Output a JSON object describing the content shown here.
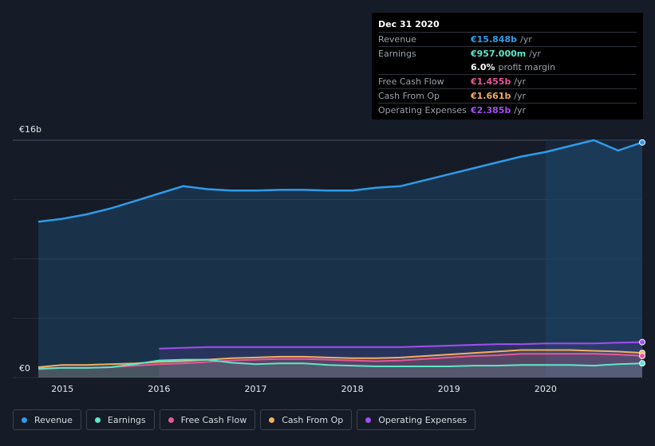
{
  "tooltip": {
    "date": "Dec 31 2020",
    "rows": [
      {
        "label": "Revenue",
        "value": "€15.848b",
        "unit": "/yr",
        "color": "#2f9bea"
      },
      {
        "label": "Earnings",
        "value": "€957.000m",
        "unit": "/yr",
        "color": "#5ee6c9"
      },
      {
        "label": "",
        "value": "6.0%",
        "unit": "profit margin",
        "color": "#ffffff"
      },
      {
        "label": "Free Cash Flow",
        "value": "€1.455b",
        "unit": "/yr",
        "color": "#e8579a"
      },
      {
        "label": "Cash From Op",
        "value": "€1.661b",
        "unit": "/yr",
        "color": "#f0b060"
      },
      {
        "label": "Operating Expenses",
        "value": "€2.385b",
        "unit": "/yr",
        "color": "#a24ef2"
      }
    ]
  },
  "legend": [
    {
      "label": "Revenue",
      "color": "#2f9bea"
    },
    {
      "label": "Earnings",
      "color": "#5ee6c9"
    },
    {
      "label": "Free Cash Flow",
      "color": "#e8579a"
    },
    {
      "label": "Cash From Op",
      "color": "#f0b060"
    },
    {
      "label": "Operating Expenses",
      "color": "#a24ef2"
    }
  ],
  "chart_data": {
    "type": "area",
    "ylabel_top": "€16b",
    "ylabel_bottom": "€0",
    "ylim": [
      0,
      16
    ],
    "xlim": [
      2014.75,
      2021.0
    ],
    "grid": true,
    "x_ticks": [
      "2015",
      "2016",
      "2017",
      "2018",
      "2019",
      "2020"
    ],
    "x_tick_values": [
      2015,
      2016,
      2017,
      2018,
      2019,
      2020
    ],
    "highlight_from": 2020.0,
    "series": [
      {
        "name": "Revenue",
        "color": "#2f9bea",
        "x": [
          2014.75,
          2015.0,
          2015.25,
          2015.5,
          2015.75,
          2016.0,
          2016.25,
          2016.5,
          2016.75,
          2017.0,
          2017.25,
          2017.5,
          2017.75,
          2018.0,
          2018.25,
          2018.5,
          2018.75,
          2019.0,
          2019.25,
          2019.5,
          2019.75,
          2020.0,
          2020.25,
          2020.5,
          2020.75,
          2021.0
        ],
        "values": [
          10.5,
          10.7,
          11.0,
          11.4,
          11.9,
          12.4,
          12.9,
          12.7,
          12.6,
          12.6,
          12.65,
          12.65,
          12.6,
          12.6,
          12.8,
          12.9,
          13.3,
          13.7,
          14.1,
          14.5,
          14.9,
          15.2,
          15.6,
          16.0,
          15.3,
          15.848
        ]
      },
      {
        "name": "Operating Expenses",
        "color": "#a24ef2",
        "x": [
          2016.0,
          2016.25,
          2016.5,
          2016.75,
          2017.0,
          2017.25,
          2017.5,
          2017.75,
          2018.0,
          2018.25,
          2018.5,
          2018.75,
          2019.0,
          2019.25,
          2019.5,
          2019.75,
          2020.0,
          2020.25,
          2020.5,
          2020.75,
          2021.0
        ],
        "values": [
          1.95,
          2.0,
          2.05,
          2.05,
          2.05,
          2.05,
          2.05,
          2.05,
          2.05,
          2.05,
          2.05,
          2.1,
          2.15,
          2.2,
          2.25,
          2.25,
          2.3,
          2.3,
          2.3,
          2.35,
          2.385
        ]
      },
      {
        "name": "Cash From Op",
        "color": "#f0b060",
        "x": [
          2014.75,
          2015.0,
          2015.25,
          2015.5,
          2015.75,
          2016.0,
          2016.25,
          2016.5,
          2016.75,
          2017.0,
          2017.25,
          2017.5,
          2017.75,
          2018.0,
          2018.25,
          2018.5,
          2018.75,
          2019.0,
          2019.25,
          2019.5,
          2019.75,
          2020.0,
          2020.25,
          2020.5,
          2020.75,
          2021.0
        ],
        "values": [
          0.7,
          0.85,
          0.85,
          0.9,
          0.95,
          1.05,
          1.1,
          1.2,
          1.3,
          1.35,
          1.4,
          1.4,
          1.35,
          1.3,
          1.3,
          1.35,
          1.45,
          1.55,
          1.65,
          1.75,
          1.85,
          1.85,
          1.85,
          1.8,
          1.75,
          1.661
        ]
      },
      {
        "name": "Free Cash Flow",
        "color": "#e8579a",
        "x": [
          2014.75,
          2015.0,
          2015.25,
          2015.5,
          2015.75,
          2016.0,
          2016.25,
          2016.5,
          2016.75,
          2017.0,
          2017.25,
          2017.5,
          2017.75,
          2018.0,
          2018.25,
          2018.5,
          2018.75,
          2019.0,
          2019.25,
          2019.5,
          2019.75,
          2020.0,
          2020.25,
          2020.5,
          2020.75,
          2021.0
        ],
        "values": [
          0.55,
          0.65,
          0.65,
          0.7,
          0.8,
          0.9,
          0.95,
          1.05,
          1.15,
          1.2,
          1.25,
          1.25,
          1.2,
          1.15,
          1.1,
          1.15,
          1.25,
          1.35,
          1.45,
          1.5,
          1.6,
          1.6,
          1.6,
          1.6,
          1.55,
          1.455
        ]
      },
      {
        "name": "Earnings",
        "color": "#5ee6c9",
        "x": [
          2014.75,
          2015.0,
          2015.25,
          2015.5,
          2015.75,
          2016.0,
          2016.25,
          2016.5,
          2016.75,
          2017.0,
          2017.25,
          2017.5,
          2017.75,
          2018.0,
          2018.25,
          2018.5,
          2018.75,
          2019.0,
          2019.25,
          2019.5,
          2019.75,
          2020.0,
          2020.25,
          2020.5,
          2020.75,
          2021.0
        ],
        "values": [
          0.6,
          0.65,
          0.65,
          0.7,
          0.9,
          1.15,
          1.2,
          1.2,
          1.0,
          0.9,
          0.95,
          0.95,
          0.85,
          0.8,
          0.75,
          0.75,
          0.75,
          0.75,
          0.8,
          0.8,
          0.85,
          0.85,
          0.85,
          0.8,
          0.9,
          0.957
        ]
      }
    ]
  }
}
